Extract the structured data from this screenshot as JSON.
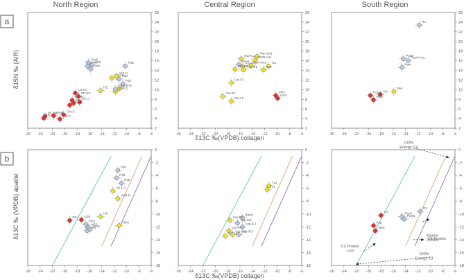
{
  "figure": {
    "columns": [
      "North Region",
      "Central Region",
      "South Region"
    ],
    "row_labels": [
      "a",
      "b"
    ],
    "xlabel": "δ13C ‰(VPDB) collagen",
    "ylabel_a": "δ15N ‰ (AIR)",
    "ylabel_b": "δ13C ‰ (VPDB) apatite",
    "colors": {
      "red": "#e03030",
      "yellow": "#f2e320",
      "blue": "#b5c9e2",
      "frame": "#777777",
      "line_teal": "#5dc5b8",
      "line_orange": "#e0a070",
      "line_purple": "#8a70b0"
    }
  },
  "chart_data": [
    {
      "type": "scatter",
      "panel": "a",
      "region": "North Region",
      "xlim": [
        -26,
        -6
      ],
      "ylim": [
        2,
        26
      ],
      "xticks": [
        -26,
        -24,
        -22,
        -20,
        -18,
        -16,
        -14,
        -12,
        -10,
        -8,
        -6
      ],
      "yticks": [
        2,
        4,
        6,
        8,
        10,
        12,
        14,
        16,
        18,
        20,
        22,
        24,
        26
      ],
      "points": [
        {
          "label": "HL-MK",
          "x": -23.2,
          "y": 4.5,
          "color": "red"
        },
        {
          "label": "HL-EF",
          "x": -23.4,
          "y": 4.1,
          "color": "red"
        },
        {
          "label": "KNH",
          "x": -21.8,
          "y": 4.6,
          "color": "red"
        },
        {
          "label": "VW-C",
          "x": -20.8,
          "y": 3.9,
          "color": "red"
        },
        {
          "label": "CW-S",
          "x": -20.2,
          "y": 4.8,
          "color": "red"
        },
        {
          "label": "LG-PC",
          "x": -18.3,
          "y": 9.3,
          "color": "red"
        },
        {
          "label": "PP-EC",
          "x": -17.8,
          "y": 8.6,
          "color": "red"
        },
        {
          "label": "LG-BC",
          "x": -18.8,
          "y": 7.8,
          "color": "red"
        },
        {
          "label": "PP-I",
          "x": -18.6,
          "y": 7.2,
          "color": "red"
        },
        {
          "label": "PP-II",
          "x": -19.2,
          "y": 6.8,
          "color": "red"
        },
        {
          "label": "PP-3",
          "x": -17.6,
          "y": 7.4,
          "color": "red"
        },
        {
          "label": "HZ",
          "x": -14.2,
          "y": 9.8,
          "color": "yellow"
        },
        {
          "label": "VI13-G",
          "x": -12.4,
          "y": 12.4,
          "color": "yellow"
        },
        {
          "label": "VI3-H",
          "x": -11.6,
          "y": 12.8,
          "color": "yellow"
        },
        {
          "label": "VSR-R",
          "x": -11.2,
          "y": 10.2,
          "color": "yellow"
        },
        {
          "label": "VSR-G",
          "x": -11.8,
          "y": 9.6,
          "color": "yellow"
        },
        {
          "label": "PmB",
          "x": -16.2,
          "y": 15.6,
          "color": "blue"
        },
        {
          "label": "HP4",
          "x": -16.3,
          "y": 14.9,
          "color": "blue"
        },
        {
          "label": "HP3",
          "x": -15.6,
          "y": 15.1,
          "color": "blue"
        },
        {
          "label": "PmS",
          "x": -15.8,
          "y": 14.3,
          "color": "blue"
        },
        {
          "label": "PdS",
          "x": -10.2,
          "y": 14.9,
          "color": "blue"
        },
        {
          "label": "Pdd",
          "x": -11.2,
          "y": 12.2,
          "color": "blue"
        },
        {
          "label": "Pd4",
          "x": -10.6,
          "y": 11.2,
          "color": "blue"
        },
        {
          "label": "HBC",
          "x": -11.8,
          "y": 10.1,
          "color": "blue"
        }
      ]
    },
    {
      "type": "scatter",
      "panel": "a",
      "region": "Central Region",
      "xlim": [
        -26,
        -6
      ],
      "ylim": [
        2,
        26
      ],
      "xticks": [
        -26,
        -24,
        -22,
        -20,
        -18,
        -16,
        -14,
        -12,
        -10,
        -8,
        -6
      ],
      "yticks": [
        2,
        4,
        6,
        8,
        10,
        12,
        14,
        16,
        18,
        20,
        22,
        24,
        26
      ],
      "points": [
        {
          "label": "Asp-IC1",
          "x": -15.8,
          "y": 16.4,
          "color": "yellow"
        },
        {
          "label": "Pal-Asc1",
          "x": -13.2,
          "y": 16.9,
          "color": "yellow"
        },
        {
          "label": "CArD-Asc",
          "x": -13.6,
          "y": 16.1,
          "color": "yellow"
        },
        {
          "label": "Band",
          "x": -16.2,
          "y": 15.2,
          "color": "blue"
        },
        {
          "label": "Asp-IF1",
          "x": -15.6,
          "y": 14.8,
          "color": "yellow"
        },
        {
          "label": "Pal-Asc2",
          "x": -14.2,
          "y": 15.0,
          "color": "yellow"
        },
        {
          "label": "Car-RF",
          "x": -16.8,
          "y": 14.2,
          "color": "yellow"
        },
        {
          "label": "Asp-IF2",
          "x": -15.4,
          "y": 14.1,
          "color": "yellow"
        },
        {
          "label": "TL1",
          "x": -11.4,
          "y": 14.9,
          "color": "yellow"
        },
        {
          "label": "TL2",
          "x": -12.2,
          "y": 14.1,
          "color": "yellow"
        },
        {
          "label": "Car-F3",
          "x": -17.4,
          "y": 11.4,
          "color": "yellow"
        },
        {
          "label": "Car-EF",
          "x": -18.8,
          "y": 8.6,
          "color": "yellow"
        },
        {
          "label": "Car-LF",
          "x": -17.4,
          "y": 7.6,
          "color": "yellow"
        },
        {
          "label": "Pbm",
          "x": -10.2,
          "y": 8.8,
          "color": "red"
        },
        {
          "label": "Hom",
          "x": -9.9,
          "y": 8.2,
          "color": "red"
        }
      ]
    },
    {
      "type": "scatter",
      "panel": "a",
      "region": "South Region",
      "xlim": [
        -26,
        -6
      ],
      "ylim": [
        2,
        26
      ],
      "xticks": [
        -26,
        -24,
        -22,
        -20,
        -18,
        -16,
        -14,
        -12,
        -10,
        -8,
        -6
      ],
      "yticks": [
        2,
        4,
        6,
        8,
        10,
        12,
        14,
        16,
        18,
        20,
        22,
        24,
        26
      ],
      "points": [
        {
          "label": "RV",
          "x": -11.8,
          "y": 23.4,
          "color": "blue"
        },
        {
          "label": "PanN",
          "x": -14.4,
          "y": 16.4,
          "color": "blue"
        },
        {
          "label": "PanH-Anc",
          "x": -13.6,
          "y": 16.0,
          "color": "blue"
        },
        {
          "label": "PanI",
          "x": -14.6,
          "y": 14.6,
          "color": "blue"
        },
        {
          "label": "Slex",
          "x": -15.9,
          "y": 9.6,
          "color": "yellow"
        },
        {
          "label": "Yul",
          "x": -18.1,
          "y": 9.0,
          "color": "red"
        },
        {
          "label": "Kop",
          "x": -19.7,
          "y": 8.8,
          "color": "red"
        },
        {
          "label": "WPx",
          "x": -19.2,
          "y": 7.9,
          "color": "red"
        }
      ]
    },
    {
      "type": "scatter",
      "panel": "b",
      "region": "North Region",
      "xlim": [
        -26,
        -6
      ],
      "ylim": [
        -18,
        0
      ],
      "xticks": [
        -26,
        -24,
        -22,
        -20,
        -18,
        -16,
        -14,
        -12,
        -10,
        -8,
        -6
      ],
      "yticks": [
        -18,
        -16,
        -14,
        -12,
        -10,
        -8,
        -6,
        -4,
        -2,
        0
      ],
      "lines": [
        {
          "name": "C3 protein line",
          "color": "line_teal",
          "x": [
            -22,
            -12.5
          ],
          "y": [
            -18,
            -1
          ]
        },
        {
          "name": "Marine protein line",
          "color": "line_orange",
          "x": [
            -14,
            -7.5
          ],
          "y": [
            -15,
            -1
          ]
        },
        {
          "name": "C4 protein line",
          "color": "line_purple",
          "x": [
            -12.5,
            -6
          ],
          "y": [
            -15,
            -1
          ]
        }
      ],
      "points": [
        {
          "label": "Pd4",
          "x": -11.4,
          "y": -3.2,
          "color": "blue"
        },
        {
          "label": "Pdd",
          "x": -11.6,
          "y": -4.4,
          "color": "blue"
        },
        {
          "label": "Pd5",
          "x": -10.8,
          "y": -5.2,
          "color": "blue"
        },
        {
          "label": "VI13-G",
          "x": -12.2,
          "y": -6.4,
          "color": "yellow"
        },
        {
          "label": "VSR-R",
          "x": -11.4,
          "y": -7.6,
          "color": "yellow"
        },
        {
          "label": "HZ",
          "x": -14.2,
          "y": -10.4,
          "color": "yellow"
        },
        {
          "label": "VI3H",
          "x": -11.2,
          "y": -11.8,
          "color": "yellow"
        },
        {
          "label": "PP-I",
          "x": -19.2,
          "y": -11.0,
          "color": "red"
        },
        {
          "label": "LGB",
          "x": -17.3,
          "y": -10.9,
          "color": "red"
        },
        {
          "label": "PmS",
          "x": -16.6,
          "y": -11.6,
          "color": "blue"
        },
        {
          "label": "HP3",
          "x": -16.2,
          "y": -12.1,
          "color": "blue"
        },
        {
          "label": "HP4",
          "x": -16.4,
          "y": -12.6,
          "color": "blue"
        },
        {
          "label": "PmB",
          "x": -15.9,
          "y": -12.4,
          "color": "blue"
        }
      ]
    },
    {
      "type": "scatter",
      "panel": "b",
      "region": "Central Region",
      "xlim": [
        -26,
        -6
      ],
      "ylim": [
        -18,
        0
      ],
      "xticks": [
        -26,
        -24,
        -22,
        -20,
        -18,
        -16,
        -14,
        -12,
        -10,
        -8,
        -6
      ],
      "yticks": [
        -18,
        -16,
        -14,
        -12,
        -10,
        -8,
        -6,
        -4,
        -2,
        0
      ],
      "lines": [
        {
          "name": "C3 protein line",
          "color": "line_teal",
          "x": [
            -22,
            -12.5
          ],
          "y": [
            -18,
            -1
          ]
        },
        {
          "name": "Marine protein line",
          "color": "line_orange",
          "x": [
            -14,
            -7.5
          ],
          "y": [
            -15,
            -1
          ]
        },
        {
          "name": "C4 protein line",
          "color": "line_purple",
          "x": [
            -12.5,
            -6
          ],
          "y": [
            -15,
            -1
          ]
        }
      ],
      "points": [
        {
          "label": "TL2",
          "x": -11.3,
          "y": -5.6,
          "color": "yellow"
        },
        {
          "label": "TL1",
          "x": -11.6,
          "y": -6.2,
          "color": "yellow"
        },
        {
          "label": "Band",
          "x": -15.6,
          "y": -10.6,
          "color": "blue"
        },
        {
          "label": "Car-EF",
          "x": -17.6,
          "y": -11.0,
          "color": "yellow"
        },
        {
          "label": "Asp-IC1",
          "x": -16.4,
          "y": -11.4,
          "color": "blue"
        },
        {
          "label": "Asp-IF2",
          "x": -15.6,
          "y": -12.0,
          "color": "blue"
        },
        {
          "label": "Car-IF3",
          "x": -17.8,
          "y": -12.6,
          "color": "yellow"
        },
        {
          "label": "Car-LF",
          "x": -18.4,
          "y": -13.4,
          "color": "yellow"
        },
        {
          "label": "Car-LF1",
          "x": -17.2,
          "y": -13.2,
          "color": "yellow"
        },
        {
          "label": "Asp-IF3",
          "x": -16.2,
          "y": -13.2,
          "color": "blue"
        }
      ]
    },
    {
      "type": "scatter",
      "panel": "b",
      "region": "South Region",
      "xlim": [
        -26,
        -6
      ],
      "ylim": [
        -18,
        0
      ],
      "xticks": [
        -26,
        -24,
        -22,
        -20,
        -18,
        -16,
        -14,
        -12,
        -10,
        -8,
        -6
      ],
      "yticks": [
        -18,
        -16,
        -14,
        -12,
        -10,
        -8,
        -6,
        -4,
        -2,
        0
      ],
      "lines": [
        {
          "name": "C3 protein line",
          "color": "line_teal",
          "x": [
            -22,
            -12.5
          ],
          "y": [
            -18,
            -1
          ]
        },
        {
          "name": "Marine protein line",
          "color": "line_orange",
          "x": [
            -14,
            -7.5
          ],
          "y": [
            -15,
            -1
          ]
        },
        {
          "name": "C4 protein line",
          "color": "line_purple",
          "x": [
            -12.5,
            -6
          ],
          "y": [
            -15,
            -1
          ]
        }
      ],
      "points": [
        {
          "label": "RV",
          "x": -11.6,
          "y": -9.6,
          "color": "blue"
        },
        {
          "label": "PanC",
          "x": -14.6,
          "y": -10.4,
          "color": "blue"
        },
        {
          "label": "PanN",
          "x": -14.2,
          "y": -10.8,
          "color": "blue"
        },
        {
          "label": "Yul",
          "x": -18.0,
          "y": -10.2,
          "color": "red"
        },
        {
          "label": "Kop",
          "x": -19.2,
          "y": -11.8,
          "color": "red"
        },
        {
          "label": "WPx",
          "x": -18.9,
          "y": -12.6,
          "color": "red"
        }
      ],
      "annotations": [
        {
          "text": [
            "100%",
            "Energy C4"
          ],
          "from": [
            -12.8,
            0.3
          ],
          "to": [
            -7.0,
            -1.2
          ],
          "tx": -13.5,
          "ty": 0.9,
          "anchor": "middle"
        },
        {
          "text": [
            "Marine",
            "Protein"
          ],
          "from": [
            -11.2,
            -11.2
          ],
          "to": [
            -10.2,
            -10.8
          ],
          "tx": -10.6,
          "ty": -13.5,
          "anchor": "start"
        },
        {
          "text": [
            "C4 Protein"
          ],
          "from": [
            -12.7,
            -14.0
          ],
          "to": [
            -11.1,
            -14.0
          ],
          "tx": -10.4,
          "ty": -14.0,
          "anchor": "start"
        },
        {
          "text": [
            "C3 Protein",
            "Line"
          ],
          "from": [
            -20.8,
            -15.8
          ],
          "to": [
            -18.9,
            -14.6
          ],
          "tx": -23.0,
          "ty": -15.2,
          "anchor": "middle"
        },
        {
          "text": [
            "100%",
            "Energy C3"
          ],
          "from": [
            -10.0,
            -16.7
          ],
          "to": [
            -22.0,
            -17.8
          ],
          "tx": -11.0,
          "ty": -16.4,
          "anchor": "middle"
        }
      ]
    }
  ]
}
